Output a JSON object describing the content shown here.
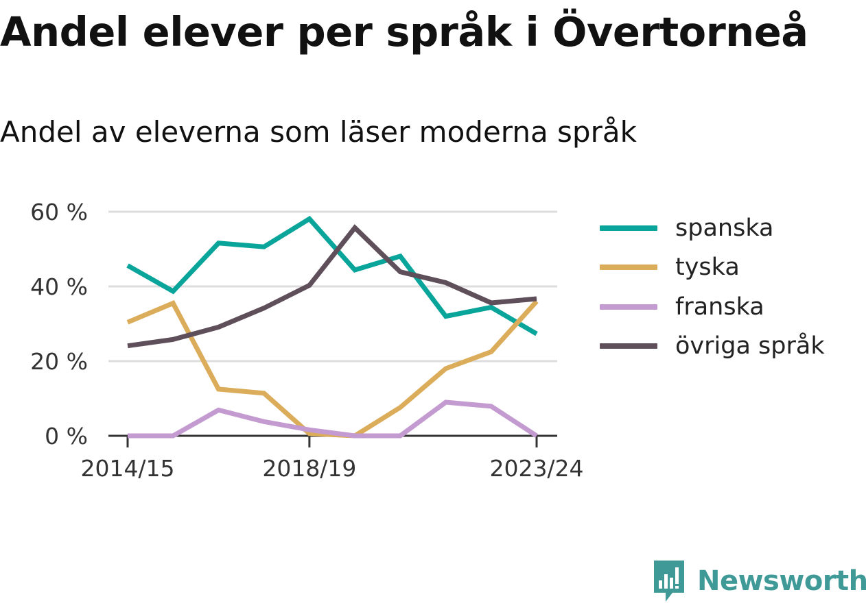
{
  "title": "Andel elever per språk i Övertorneå",
  "subtitle": "Andel av eleverna som läser moderna språk",
  "brand": {
    "name": "Newsworthy",
    "icon": "newsworthy-logo-icon",
    "color": "#3f9a97"
  },
  "chart_data": {
    "type": "line",
    "title": "Andel elever per språk i Övertorneå",
    "subtitle": "Andel av eleverna som läser moderna språk",
    "x": [
      "2014/15",
      "2015/16",
      "2016/17",
      "2017/18",
      "2018/19",
      "2019/20",
      "2020/21",
      "2021/22",
      "2022/23",
      "2023/24"
    ],
    "xticks": [
      "2014/15",
      "2018/19",
      "2023/24"
    ],
    "yticks": [
      0,
      20,
      40,
      60
    ],
    "ytick_labels": [
      "0 %",
      "20 %",
      "40 %",
      "60 %"
    ],
    "ylim": [
      0,
      60
    ],
    "grid": true,
    "legend_position": "right",
    "series": [
      {
        "name": "spanska",
        "color": "#0aa59a",
        "values": [
          45.6,
          38.7,
          51.6,
          50.6,
          58.1,
          44.4,
          48.1,
          32.0,
          34.4,
          27.3
        ]
      },
      {
        "name": "tyska",
        "color": "#dbac5a",
        "values": [
          30.4,
          35.5,
          12.5,
          11.4,
          0.6,
          0.0,
          7.6,
          18.0,
          22.5,
          36.0
        ]
      },
      {
        "name": "franska",
        "color": "#c49bd0",
        "values": [
          0.0,
          0.0,
          6.9,
          3.8,
          1.6,
          0.0,
          0.0,
          9.0,
          7.9,
          0.0
        ]
      },
      {
        "name": "övriga språk",
        "color": "#5f4f5a",
        "values": [
          24.1,
          25.8,
          29.1,
          34.2,
          40.3,
          55.7,
          43.9,
          41.0,
          35.6,
          36.7
        ]
      }
    ]
  }
}
